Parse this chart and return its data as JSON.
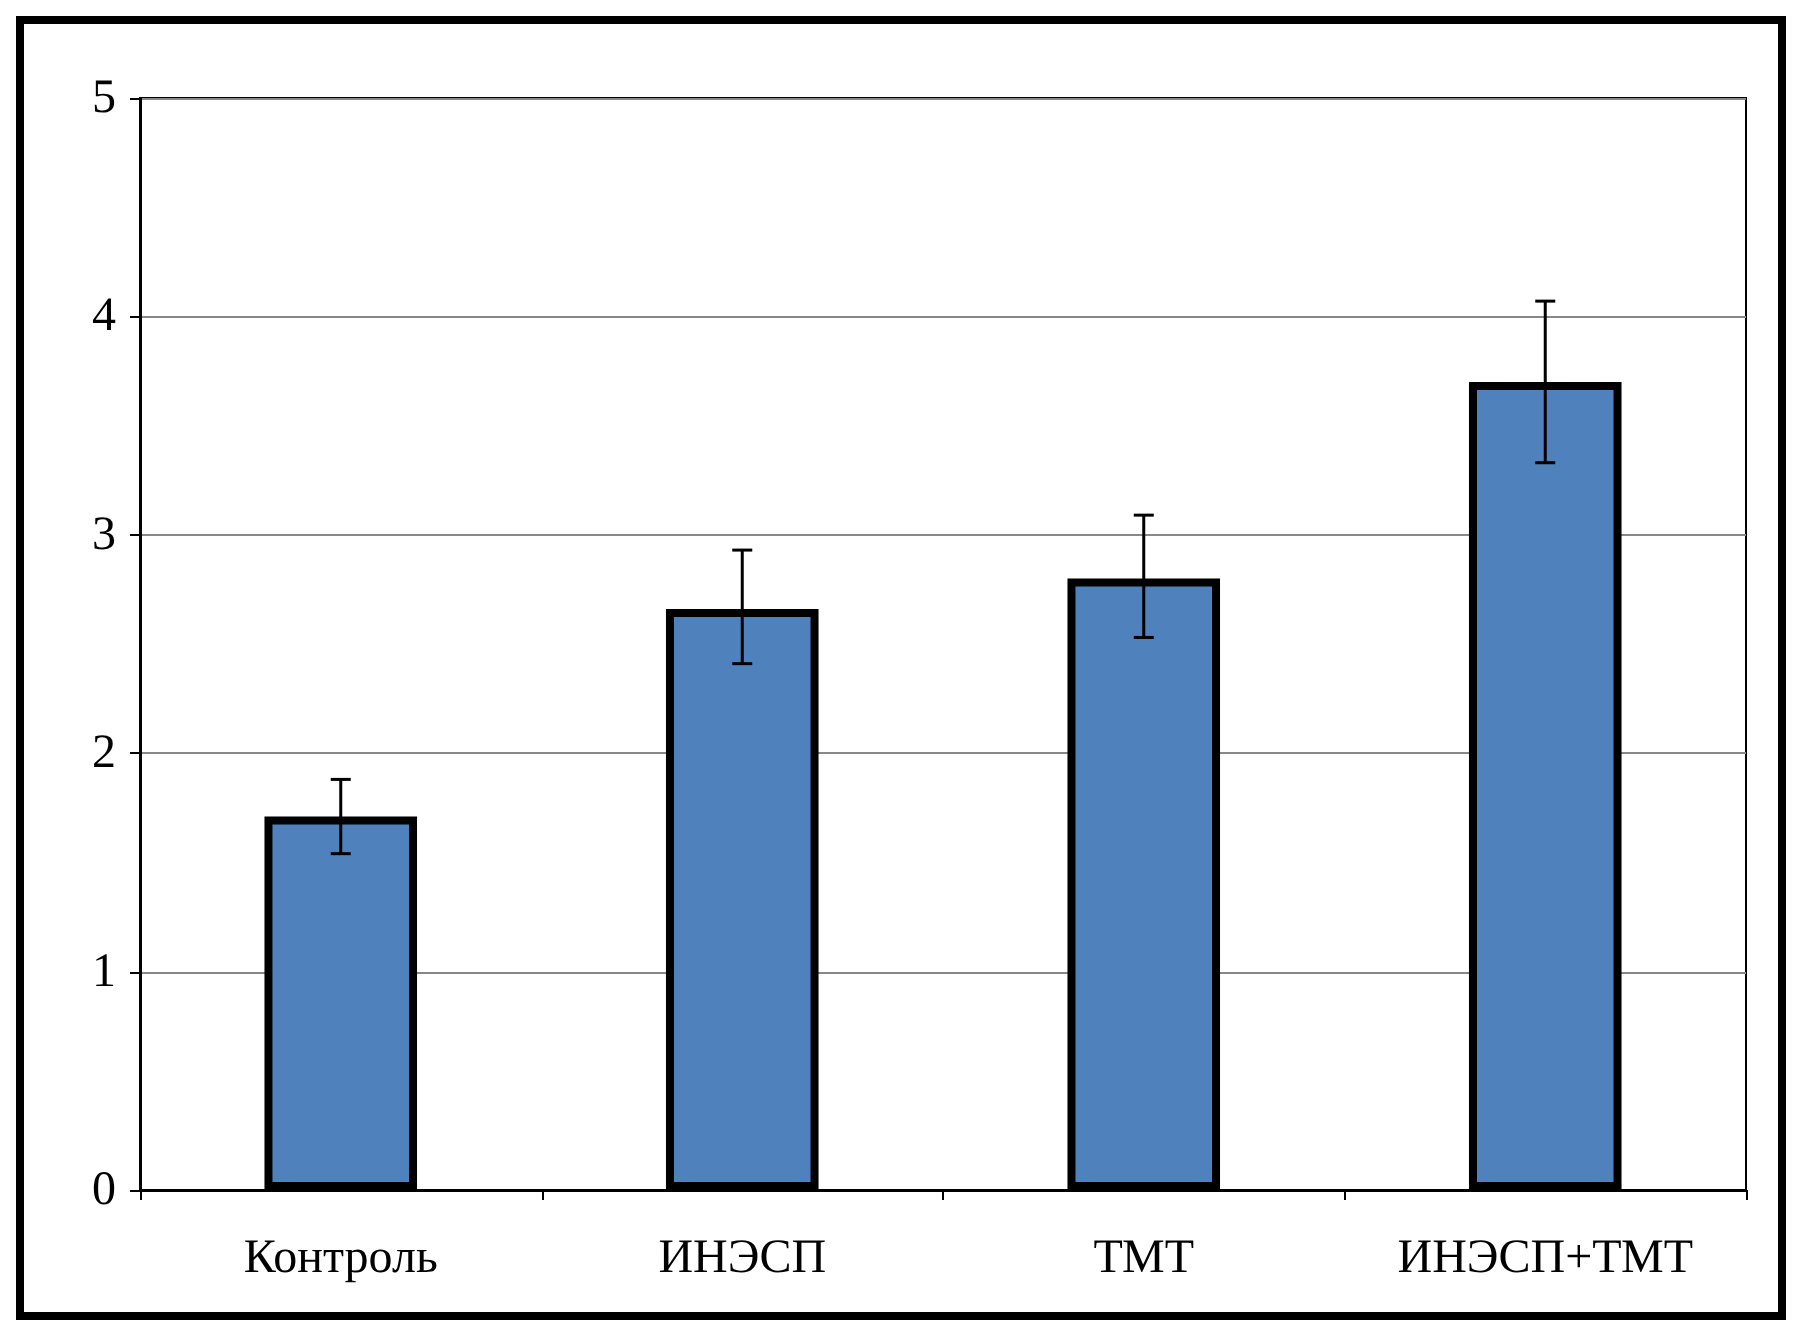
{
  "chart_data": {
    "type": "bar",
    "categories": [
      "Контроль",
      "ИНЭСП",
      "ТМТ",
      "ИНЭСП+ТМТ"
    ],
    "values": [
      1.71,
      2.66,
      2.8,
      3.7
    ],
    "errors": [
      [
        1.54,
        1.88
      ],
      [
        2.41,
        2.93
      ],
      [
        2.53,
        3.09
      ],
      [
        3.33,
        4.07
      ]
    ],
    "color": "#4f81bd",
    "ylim": [
      0,
      5
    ],
    "yticks": [
      0,
      1,
      2,
      3,
      4,
      5
    ],
    "grid": "y"
  }
}
